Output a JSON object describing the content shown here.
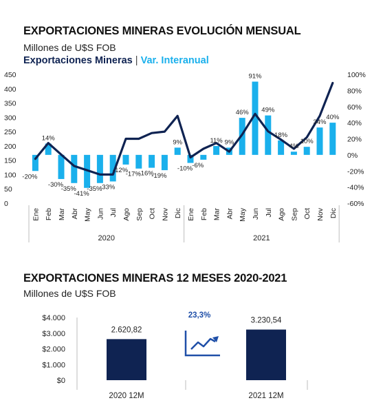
{
  "chart1": {
    "title": "EXPORTACIONES MINERAS EVOLUCIÓN MENSUAL",
    "subtitle": "Millones de U$S FOB",
    "legend": {
      "series1": "Exportaciones Mineras",
      "separator": "|",
      "series2": "Var. Interanual"
    },
    "colors": {
      "line": "#0f2352",
      "bars": "#1ab0ec"
    }
  },
  "chart2": {
    "title": "EXPORTACIONES MINERAS 12 MESES 2020-2021",
    "subtitle": "Millones de U$S FOB",
    "growth_label": "23,3%",
    "colors": {
      "bars": "#0f2352",
      "growth": "#1f4fa8"
    }
  },
  "chart_data": [
    {
      "type": "bar+line",
      "title": "EXPORTACIONES MINERAS EVOLUCIÓN MENSUAL",
      "subtitle": "Millones de U$S FOB",
      "categories": [
        "Ene",
        "Feb",
        "Mar",
        "Abr",
        "May",
        "Jun",
        "Jul",
        "Ago",
        "Sep",
        "Oct",
        "Nov",
        "Dic",
        "Ene",
        "Feb",
        "Mar",
        "Abr",
        "May",
        "Jun",
        "Jul",
        "Ago",
        "Sep",
        "Oct",
        "Nov",
        "Dic"
      ],
      "groups": [
        {
          "label": "2020"
        },
        {
          "label": "2021"
        }
      ],
      "series": [
        {
          "name": "Exportaciones Mineras",
          "type": "line",
          "axis": "left",
          "values": [
            155,
            210,
            170,
            130,
            115,
            100,
            100,
            225,
            225,
            245,
            250,
            305,
            160,
            190,
            210,
            180,
            240,
            312,
            251,
            222,
            190,
            230,
            305,
            420
          ]
        },
        {
          "name": "Var. Interanual",
          "type": "bar",
          "axis": "right",
          "values": [
            -20,
            14,
            -30,
            -35,
            -41,
            -35,
            -33,
            -12,
            -17,
            -16,
            -19,
            9,
            -10,
            -6,
            11,
            9,
            46,
            91,
            49,
            18,
            4,
            10,
            34,
            40
          ],
          "labels": [
            "-20%",
            "14%",
            "-30%",
            "-35%",
            "-41%",
            "-35%",
            "-33%",
            "-12%",
            "-17%",
            "-16%",
            "-19%",
            "9%",
            "-10%",
            "-6%",
            "11%",
            "9%",
            "46%",
            "91%",
            "49%",
            "18%",
            "4%",
            "10%",
            "34%",
            "40%"
          ]
        }
      ],
      "y_left": {
        "min": 0,
        "max": 450,
        "ticks": [
          "450",
          "400",
          "350",
          "300",
          "250",
          "200",
          "150",
          "100",
          "50",
          "0"
        ]
      },
      "y_right": {
        "min": -60,
        "max": 100,
        "ticks": [
          "100%",
          "80%",
          "60%",
          "40%",
          "20%",
          "0%",
          "-20%",
          "-40%",
          "-60%"
        ]
      },
      "grid": false,
      "legend_position": "top-left"
    },
    {
      "type": "bar",
      "title": "EXPORTACIONES MINERAS 12 MESES 2020-2021",
      "subtitle": "Millones de U$S FOB",
      "categories": [
        "2020 12M",
        "2021 12M"
      ],
      "values": [
        2620.82,
        3230.54
      ],
      "labels": [
        "2.620,82",
        "3.230,54"
      ],
      "ylim": [
        0,
        4000
      ],
      "y_ticks": [
        "$4.000",
        "$3.000",
        "$2.000",
        "$1.000",
        "$0"
      ],
      "annotation": "23,3%",
      "grid": false
    }
  ]
}
